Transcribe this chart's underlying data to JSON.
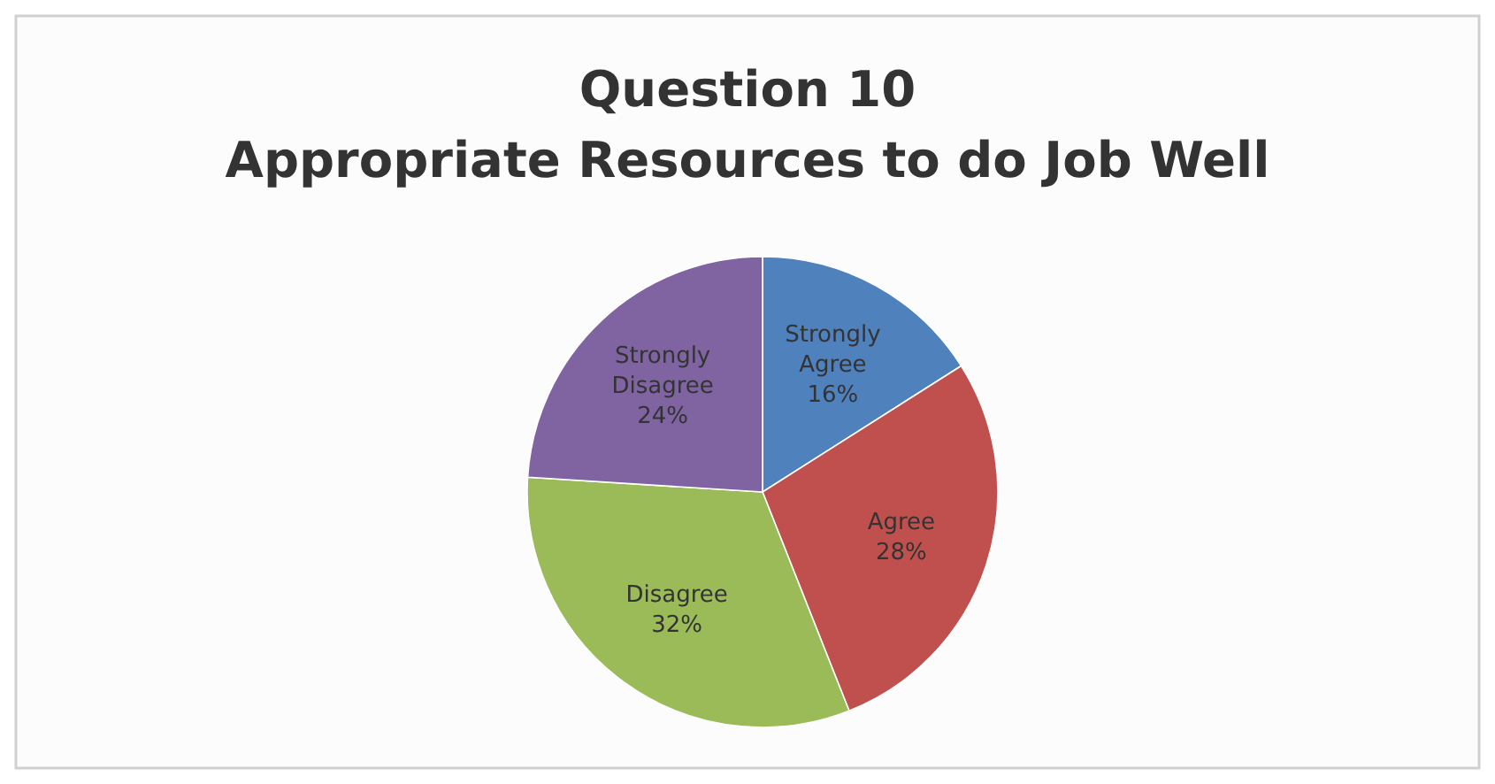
{
  "chart_data": {
    "type": "pie",
    "title": "Question 10\nAppropriate Resources to do Job Well",
    "categories": [
      "Strongly Agree",
      "Agree",
      "Disagree",
      "Strongly Disagree"
    ],
    "values": [
      16,
      28,
      32,
      24
    ],
    "value_labels": [
      "16%",
      "28%",
      "32%",
      "24%"
    ],
    "colors": [
      "#4f81bd",
      "#c0504d",
      "#9bbb59",
      "#8064a2"
    ]
  }
}
